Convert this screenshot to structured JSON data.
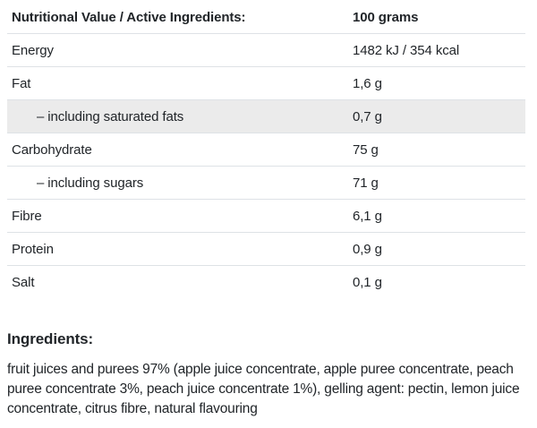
{
  "colors": {
    "text": "#212529",
    "border": "#dee2e6",
    "shaded_row_bg": "#ebebeb"
  },
  "table": {
    "header": {
      "label": "Nutritional Value / Active Ingredients:",
      "value": "100 grams"
    },
    "rows": [
      {
        "label": "Energy",
        "value": "1482 kJ / 354 kcal"
      },
      {
        "label": "Fat",
        "value": "1,6 g"
      },
      {
        "label": "– including saturated fats",
        "value": "0,7 g"
      },
      {
        "label": "Carbohydrate",
        "value": "75 g"
      },
      {
        "label": "– including sugars",
        "value": "71 g"
      },
      {
        "label": "Fibre",
        "value": "6,1 g"
      },
      {
        "label": "Protein",
        "value": "0,9 g"
      },
      {
        "label": "Salt",
        "value": "0,1 g"
      }
    ]
  },
  "ingredients": {
    "heading": "Ingredients:",
    "text": "fruit juices and purees 97% (apple juice concentrate, apple puree concentrate, peach puree concentrate 3%, peach juice concentrate 1%), gelling agent: pectin, lemon juice concentrate, citrus fibre, natural flavouring"
  }
}
